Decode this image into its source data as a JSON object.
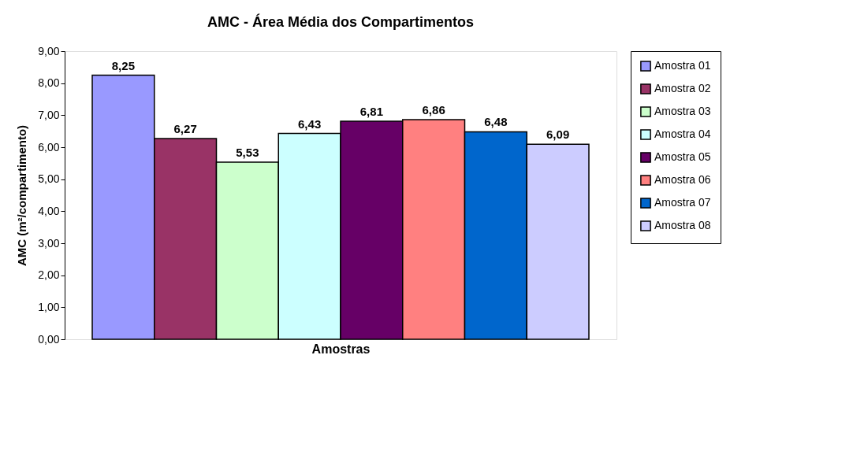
{
  "chart_data": {
    "type": "bar",
    "title": "AMC - Área Média dos Compartimentos",
    "xlabel": "Amostras",
    "ylabel": "AMC (m²/compartimento)",
    "categories": [
      null
    ],
    "series": [
      {
        "name": "Amostra 01",
        "color": "#9999ff",
        "values": [
          8.25
        ],
        "value_labels": [
          "8,25"
        ]
      },
      {
        "name": "Amostra 02",
        "color": "#993366",
        "values": [
          6.27
        ],
        "value_labels": [
          "6,27"
        ]
      },
      {
        "name": "Amostra 03",
        "color": "#ccffcc",
        "values": [
          5.53
        ],
        "value_labels": [
          "5,53"
        ]
      },
      {
        "name": "Amostra 04",
        "color": "#ccffff",
        "values": [
          6.43
        ],
        "value_labels": [
          "6,43"
        ]
      },
      {
        "name": "Amostra 05",
        "color": "#660066",
        "values": [
          6.81
        ],
        "value_labels": [
          "6,81"
        ]
      },
      {
        "name": "Amostra 06",
        "color": "#ff8080",
        "values": [
          6.86
        ],
        "value_labels": [
          "6,86"
        ]
      },
      {
        "name": "Amostra 07",
        "color": "#0066cc",
        "values": [
          6.48
        ],
        "value_labels": [
          "6,48"
        ]
      },
      {
        "name": "Amostra 08",
        "color": "#ccccff",
        "values": [
          6.09
        ],
        "value_labels": [
          "6,09"
        ]
      }
    ],
    "ylim": [
      0,
      9
    ],
    "yticks": [
      {
        "value": 0,
        "label": "0,00"
      },
      {
        "value": 1,
        "label": "1,00"
      },
      {
        "value": 2,
        "label": "2,00"
      },
      {
        "value": 3,
        "label": "3,00"
      },
      {
        "value": 4,
        "label": "4,00"
      },
      {
        "value": 5,
        "label": "5,00"
      },
      {
        "value": 6,
        "label": "6,00"
      },
      {
        "value": 7,
        "label": "7,00"
      },
      {
        "value": 8,
        "label": "8,00"
      },
      {
        "value": 9,
        "label": "9,00"
      }
    ],
    "grid": false,
    "legend": "right"
  }
}
